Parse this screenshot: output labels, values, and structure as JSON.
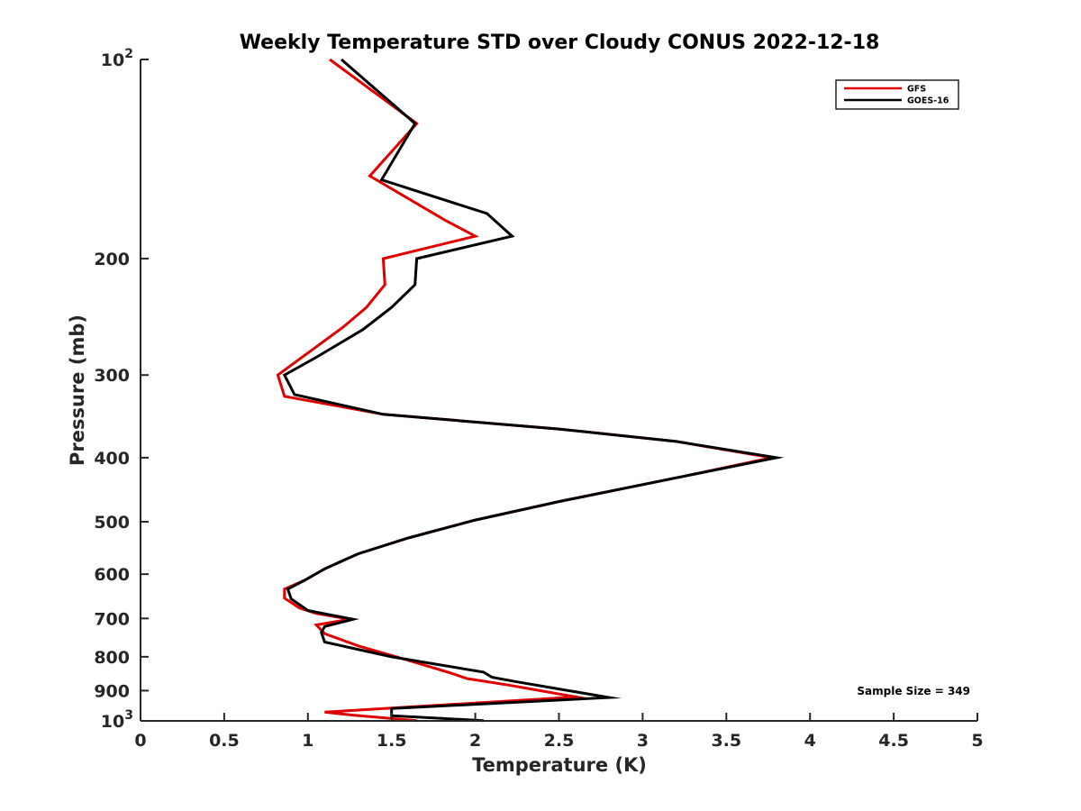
{
  "chart_data": {
    "type": "line",
    "title": "Weekly Temperature STD over Cloudy CONUS 2022-12-18",
    "xlabel": "Temperature (K)",
    "ylabel": "Pressure (mb)",
    "xlim": [
      0,
      5
    ],
    "ylim": [
      100,
      1000
    ],
    "yscale": "log",
    "y_reversed": true,
    "grid": false,
    "legend_position": "top-right",
    "x_ticks": [
      0,
      0.5,
      1,
      1.5,
      2,
      2.5,
      3,
      3.5,
      4,
      4.5,
      5
    ],
    "x_tick_labels": [
      "0",
      "0.5",
      "1",
      "1.5",
      "2",
      "2.5",
      "3",
      "3.5",
      "4",
      "4.5",
      "5"
    ],
    "y_ticks": [
      100,
      200,
      300,
      400,
      500,
      600,
      700,
      800,
      900,
      1000
    ],
    "y_tick_labels": [
      {
        "base": "10",
        "exp": "2"
      },
      {
        "base": "200",
        "exp": ""
      },
      {
        "base": "300",
        "exp": ""
      },
      {
        "base": "400",
        "exp": ""
      },
      {
        "base": "500",
        "exp": ""
      },
      {
        "base": "600",
        "exp": ""
      },
      {
        "base": "700",
        "exp": ""
      },
      {
        "base": "800",
        "exp": ""
      },
      {
        "base": "900",
        "exp": ""
      },
      {
        "base": "10",
        "exp": "3"
      }
    ],
    "annotation": "Sample Size = 349",
    "series": [
      {
        "name": "GFS",
        "color": "#e00000",
        "points": [
          [
            1.13,
            100
          ],
          [
            1.65,
            125
          ],
          [
            1.37,
            150
          ],
          [
            1.82,
            175
          ],
          [
            2.0,
            185
          ],
          [
            1.45,
            200
          ],
          [
            1.46,
            219
          ],
          [
            1.35,
            237
          ],
          [
            1.21,
            254
          ],
          [
            0.99,
            279
          ],
          [
            0.82,
            300
          ],
          [
            0.86,
            323
          ],
          [
            1.45,
            344
          ],
          [
            2.5,
            362
          ],
          [
            3.2,
            378
          ],
          [
            3.77,
            400
          ],
          [
            3.3,
            424
          ],
          [
            2.5,
            466
          ],
          [
            2.0,
            497
          ],
          [
            1.6,
            529
          ],
          [
            1.3,
            559
          ],
          [
            1.1,
            589
          ],
          [
            0.98,
            613
          ],
          [
            0.86,
            632
          ],
          [
            0.86,
            652
          ],
          [
            0.95,
            675
          ],
          [
            1.05,
            688
          ],
          [
            1.25,
            702
          ],
          [
            1.05,
            716
          ],
          [
            1.1,
            738
          ],
          [
            1.3,
            770
          ],
          [
            1.6,
            810
          ],
          [
            1.85,
            846
          ],
          [
            1.95,
            863
          ],
          [
            2.2,
            883
          ],
          [
            2.6,
            920
          ],
          [
            1.1,
            970
          ],
          [
            1.27,
            980
          ],
          [
            1.65,
            999
          ]
        ]
      },
      {
        "name": "GOES-16",
        "color": "#000000",
        "points": [
          [
            1.2,
            100
          ],
          [
            1.64,
            125
          ],
          [
            1.44,
            152
          ],
          [
            2.07,
            171
          ],
          [
            2.22,
            185
          ],
          [
            1.65,
            200
          ],
          [
            1.64,
            219
          ],
          [
            1.5,
            237
          ],
          [
            1.33,
            256
          ],
          [
            1.05,
            282
          ],
          [
            0.86,
            300
          ],
          [
            0.92,
            321
          ],
          [
            1.45,
            344
          ],
          [
            2.5,
            362
          ],
          [
            3.2,
            378
          ],
          [
            3.8,
            400
          ],
          [
            3.3,
            424
          ],
          [
            2.5,
            466
          ],
          [
            2.0,
            497
          ],
          [
            1.6,
            529
          ],
          [
            1.3,
            559
          ],
          [
            1.1,
            589
          ],
          [
            0.98,
            613
          ],
          [
            0.88,
            632
          ],
          [
            0.9,
            654
          ],
          [
            1.0,
            681
          ],
          [
            1.14,
            692
          ],
          [
            1.27,
            702
          ],
          [
            1.1,
            720
          ],
          [
            1.08,
            735
          ],
          [
            1.1,
            760
          ],
          [
            1.5,
            800
          ],
          [
            2.05,
            844
          ],
          [
            2.1,
            859
          ],
          [
            2.25,
            873
          ],
          [
            2.5,
            895
          ],
          [
            2.8,
            922
          ],
          [
            1.5,
            958
          ],
          [
            1.5,
            982
          ],
          [
            2.05,
            999
          ]
        ]
      }
    ]
  }
}
